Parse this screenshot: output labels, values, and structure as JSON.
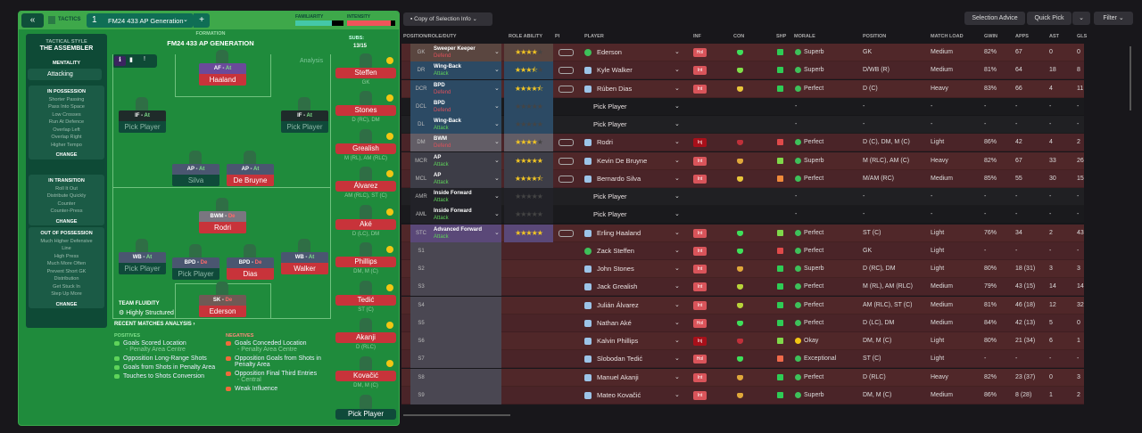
{
  "tactics": {
    "back": "«",
    "label": "TACTICS",
    "slot": "1",
    "name": "FM24 433 AP Generation",
    "add": "+",
    "familiarity_label": "FAMILIARITY",
    "intensity_label": "INTENSITY",
    "familiarity": 0.75,
    "intensity": 0.9
  },
  "sidebar": {
    "style_label": "TACTICAL STYLE",
    "style": "THE ASSEMBLER",
    "mentality_label": "MENTALITY",
    "mentality": "Attacking",
    "sections": [
      {
        "title": "IN POSSESSION",
        "items": [
          "Shorter Passing",
          "Pass Into Space",
          "Low Crosses",
          "Run At Defence",
          "Overlap Left",
          "Overlap Right",
          "Higher Tempo"
        ],
        "change": "CHANGE"
      },
      {
        "title": "IN TRANSITION",
        "items": [
          "Roll It Out",
          "Distribute Quickly",
          "Counter",
          "Counter-Press"
        ],
        "change": "CHANGE"
      },
      {
        "title": "OUT OF POSSESSION",
        "items": [
          "Much Higher Defensive",
          "Line",
          "High Press",
          "Much More Often",
          "Prevent Short GK",
          "Distribution",
          "Get Stuck In",
          "Step Up More"
        ],
        "change": "CHANGE"
      }
    ]
  },
  "formation": {
    "label": "FORMATION",
    "name": "FM24 433 AP GENERATION",
    "analysis": "Analysis",
    "subs_label": "SUBS:",
    "subs": "13/15",
    "fluidity_label": "TEAM FLUIDITY",
    "fluidity": "Highly Structured"
  },
  "pitch": [
    {
      "role": "AF",
      "duty": "At",
      "player": "Haaland",
      "filled": true
    },
    {
      "role": "IF",
      "duty": "At",
      "player": "Pick Player",
      "filled": false
    },
    {
      "role": "IF",
      "duty": "At",
      "player": "Pick Player",
      "filled": false
    },
    {
      "role": "AP",
      "duty": "At",
      "player": "Silva",
      "filled": false
    },
    {
      "role": "AP",
      "duty": "At",
      "player": "De Bruyne",
      "filled": true
    },
    {
      "role": "BWM",
      "duty": "De",
      "player": "Rodri",
      "filled": true
    },
    {
      "role": "WB",
      "duty": "At",
      "player": "Pick Player",
      "filled": false
    },
    {
      "role": "BPD",
      "duty": "De",
      "player": "Pick Player",
      "filled": false
    },
    {
      "role": "BPD",
      "duty": "De",
      "player": "Dias",
      "filled": true
    },
    {
      "role": "WB",
      "duty": "At",
      "player": "Walker",
      "filled": true
    },
    {
      "role": "SK",
      "duty": "De",
      "player": "Ederson",
      "filled": true
    }
  ],
  "subs": [
    {
      "name": "Steffen",
      "pos": "GK"
    },
    {
      "name": "Stones",
      "pos": "D (RC), DM"
    },
    {
      "name": "Grealish",
      "pos": "M (RL), AM (RLC)"
    },
    {
      "name": "Álvarez",
      "pos": "AM (RLC), ST (C)"
    },
    {
      "name": "Aké",
      "pos": "D (LC), DM"
    },
    {
      "name": "Phillips",
      "pos": "DM, M (C)"
    },
    {
      "name": "Tedić",
      "pos": "ST (C)"
    },
    {
      "name": "Akanji",
      "pos": "D (RLC)"
    },
    {
      "name": "Kovačić",
      "pos": "DM, M (C)"
    },
    {
      "name": "Pick Player",
      "pos": ""
    }
  ],
  "analysis": {
    "title": "RECENT MATCHES ANALYSIS ›",
    "positives_label": "POSITIVES",
    "negatives_label": "NEGATIVES",
    "positives": [
      {
        "t": "Goals Scored Location",
        "s": "- Penalty Area Centre"
      },
      {
        "t": "Opposition Long-Range Shots",
        "s": ""
      },
      {
        "t": "Goals from Shots in Penalty Area",
        "s": ""
      },
      {
        "t": "Touches to Shots Conversion",
        "s": ""
      }
    ],
    "negatives": [
      {
        "t": "Goals Conceded Location",
        "s": "- Penalty Area Centre"
      },
      {
        "t": "Opposition Goals from Shots in Penalty Area",
        "s": ""
      },
      {
        "t": "Opposition Final Third Entries",
        "s": "- Central"
      },
      {
        "t": "Weak Influence",
        "s": ""
      }
    ]
  },
  "toolbar": {
    "copy": "Copy of Selection Info",
    "advice": "Selection Advice",
    "quick_pick": "Quick Pick",
    "filter": "Filter"
  },
  "columns": [
    "POSITION/ROLE/DUTY",
    "ROLE ABILITY",
    "PI",
    "PLAYER",
    "INF",
    "CON",
    "SHP",
    "MORALE",
    "POSITION",
    "MATCH LOAD",
    "GWIN",
    "APPS",
    "AST",
    "GLS"
  ],
  "rows": [
    {
      "pos": "GK",
      "role": "Sweeper Keeper",
      "duty": "Defend",
      "stars": 4,
      "player": "Ederson",
      "inf": "Hol",
      "con": "#3ee05a",
      "shp": "#2ecc55",
      "morale": "Superb",
      "position": "GK",
      "load": "Medium",
      "gwin": "82%",
      "apps": "67",
      "ast": "0",
      "gls": "0"
    },
    {
      "pos": "DR",
      "role": "Wing-Back",
      "duty": "Attack",
      "stars": 3.5,
      "player": "Kyle Walker",
      "inf": "Int",
      "con": "#7fe04a",
      "shp": "#2ecc55",
      "morale": "Superb",
      "position": "D/WB (R)",
      "load": "Medium",
      "gwin": "81%",
      "apps": "64",
      "ast": "18",
      "gls": "8"
    },
    {
      "pos": "DCR",
      "role": "BPD",
      "duty": "Defend",
      "stars": 4.5,
      "player": "Rúben Dias",
      "inf": "Int",
      "con": "#e8c53a",
      "shp": "#2ecc55",
      "morale": "Perfect",
      "position": "D (C)",
      "load": "Heavy",
      "gwin": "83%",
      "apps": "66",
      "ast": "4",
      "gls": "11"
    },
    {
      "pos": "DCL",
      "role": "BPD",
      "duty": "Defend",
      "stars": 0,
      "player": "Pick Player",
      "inf": "",
      "con": "",
      "shp": "",
      "morale": "-",
      "position": "-",
      "load": "-",
      "gwin": "-",
      "apps": "-",
      "ast": "-",
      "gls": "-"
    },
    {
      "pos": "DL",
      "role": "Wing-Back",
      "duty": "Attack",
      "stars": 0,
      "player": "Pick Player",
      "inf": "",
      "con": "",
      "shp": "",
      "morale": "-",
      "position": "-",
      "load": "-",
      "gwin": "-",
      "apps": "-",
      "ast": "-",
      "gls": "-"
    },
    {
      "pos": "DM",
      "role": "BWM",
      "duty": "Defend",
      "stars": 4,
      "player": "Rodri",
      "inf": "Inj",
      "con": "#c0303a",
      "shp": "#e04a4a",
      "morale": "Perfect",
      "position": "D (C), DM, M (C)",
      "load": "Light",
      "gwin": "86%",
      "apps": "42",
      "ast": "4",
      "gls": "2"
    },
    {
      "pos": "MCR",
      "role": "AP",
      "duty": "Attack",
      "stars": 5,
      "player": "Kevin De Bruyne",
      "inf": "Int",
      "con": "#e0a83a",
      "shp": "#7fd94a",
      "morale": "Superb",
      "position": "M (RLC), AM (C)",
      "load": "Heavy",
      "gwin": "82%",
      "apps": "67",
      "ast": "33",
      "gls": "26"
    },
    {
      "pos": "MCL",
      "role": "AP",
      "duty": "Attack",
      "stars": 4.5,
      "player": "Bernardo Silva",
      "inf": "Int",
      "con": "#e8c53a",
      "shp": "#f08a3a",
      "morale": "Perfect",
      "position": "M/AM (RC)",
      "load": "Medium",
      "gwin": "85%",
      "apps": "55",
      "ast": "30",
      "gls": "15"
    },
    {
      "pos": "AMR",
      "role": "Inside Forward",
      "duty": "Attack",
      "stars": 0,
      "player": "Pick Player",
      "inf": "",
      "con": "",
      "shp": "",
      "morale": "-",
      "position": "-",
      "load": "-",
      "gwin": "-",
      "apps": "-",
      "ast": "-",
      "gls": "-"
    },
    {
      "pos": "AML",
      "role": "Inside Forward",
      "duty": "Attack",
      "stars": 0,
      "player": "Pick Player",
      "inf": "",
      "con": "",
      "shp": "",
      "morale": "-",
      "position": "-",
      "load": "-",
      "gwin": "-",
      "apps": "-",
      "ast": "-",
      "gls": "-"
    },
    {
      "pos": "STC",
      "role": "Advanced Forward",
      "duty": "Attack",
      "stars": 5,
      "player": "Erling Haaland",
      "inf": "Int",
      "con": "#3ee05a",
      "shp": "#7fd94a",
      "morale": "Perfect",
      "position": "ST (C)",
      "load": "Light",
      "gwin": "76%",
      "apps": "34",
      "ast": "2",
      "gls": "43"
    },
    {
      "pos": "S1",
      "player": "Zack Steffen",
      "inf": "Int",
      "con": "#3ee05a",
      "shp": "#e04a4a",
      "morale": "Perfect",
      "position": "GK",
      "load": "Light",
      "gwin": "-",
      "apps": "-",
      "ast": "-",
      "gls": "-"
    },
    {
      "pos": "S2",
      "player": "John Stones",
      "inf": "Int",
      "con": "#e0a83a",
      "shp": "#2ecc55",
      "morale": "Superb",
      "position": "D (RC), DM",
      "load": "Light",
      "gwin": "80%",
      "apps": "18 (31)",
      "ast": "3",
      "gls": "3"
    },
    {
      "pos": "S3",
      "player": "Jack Grealish",
      "inf": "Int",
      "con": "#b8d43a",
      "shp": "#2ecc55",
      "morale": "Perfect",
      "position": "M (RL), AM (RLC)",
      "load": "Medium",
      "gwin": "79%",
      "apps": "43 (15)",
      "ast": "14",
      "gls": "14"
    },
    {
      "pos": "S4",
      "player": "Julián Álvarez",
      "inf": "Int",
      "con": "#b8d43a",
      "shp": "#2ecc55",
      "morale": "Perfect",
      "position": "AM (RLC), ST (C)",
      "load": "Medium",
      "gwin": "81%",
      "apps": "46 (18)",
      "ast": "12",
      "gls": "32"
    },
    {
      "pos": "S5",
      "player": "Nathan Aké",
      "inf": "Hol",
      "con": "#3ee05a",
      "shp": "#2ecc55",
      "morale": "Perfect",
      "position": "D (LC), DM",
      "load": "Medium",
      "gwin": "84%",
      "apps": "42 (13)",
      "ast": "5",
      "gls": "0"
    },
    {
      "pos": "S6",
      "player": "Kalvin Phillips",
      "inf": "Inj",
      "con": "#c0303a",
      "shp": "#7fd94a",
      "morale": "Okay",
      "position": "DM, M (C)",
      "load": "Light",
      "gwin": "80%",
      "apps": "21 (34)",
      "ast": "6",
      "gls": "1"
    },
    {
      "pos": "S7",
      "player": "Slobodan Tedić",
      "inf": "Hol",
      "con": "#3ee05a",
      "shp": "#f06a4a",
      "morale": "Exceptional",
      "position": "ST (C)",
      "load": "Light",
      "gwin": "-",
      "apps": "-",
      "ast": "-",
      "gls": "-"
    },
    {
      "pos": "S8",
      "player": "Manuel Akanji",
      "inf": "Int",
      "con": "#e0a83a",
      "shp": "#2ecc55",
      "morale": "Perfect",
      "position": "D (RLC)",
      "load": "Heavy",
      "gwin": "82%",
      "apps": "23 (37)",
      "ast": "0",
      "gls": "3"
    },
    {
      "pos": "S9",
      "player": "Mateo Kovačić",
      "inf": "Int",
      "con": "#e0a83a",
      "shp": "#2ecc55",
      "morale": "Superb",
      "position": "DM, M (C)",
      "load": "Medium",
      "gwin": "86%",
      "apps": "8 (28)",
      "ast": "1",
      "gls": "2"
    }
  ]
}
